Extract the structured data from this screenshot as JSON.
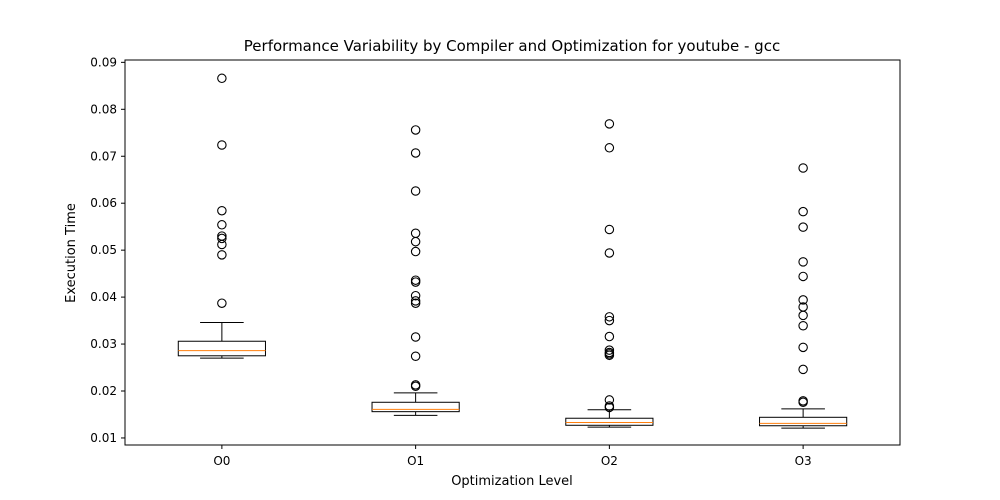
{
  "chart_data": {
    "type": "box",
    "title": "Performance Variability by Compiler and Optimization for youtube - gcc",
    "xlabel": "Optimization Level",
    "ylabel": "Execution Time",
    "ylim": [
      0.0085,
      0.0905
    ],
    "yticks": [
      0.01,
      0.02,
      0.03,
      0.04,
      0.05,
      0.06,
      0.07,
      0.08,
      0.09
    ],
    "ytick_labels": [
      "0.01",
      "0.02",
      "0.03",
      "0.04",
      "0.05",
      "0.06",
      "0.07",
      "0.08",
      "0.09"
    ],
    "categories": [
      "O0",
      "O1",
      "O2",
      "O3"
    ],
    "boxes": [
      {
        "label": "O0",
        "whisker_low": 0.027,
        "q1": 0.0275,
        "median": 0.0286,
        "q3": 0.0306,
        "whisker_high": 0.0346,
        "outliers": [
          0.0866,
          0.0724,
          0.0584,
          0.0554,
          0.053,
          0.0525,
          0.0512,
          0.049,
          0.0387
        ]
      },
      {
        "label": "O1",
        "whisker_low": 0.0148,
        "q1": 0.0156,
        "median": 0.0161,
        "q3": 0.0176,
        "whisker_high": 0.0196,
        "outliers": [
          0.0756,
          0.0707,
          0.0626,
          0.0536,
          0.0518,
          0.0497,
          0.0436,
          0.0432,
          0.0403,
          0.0392,
          0.0387,
          0.0315,
          0.0274,
          0.0213,
          0.021
        ]
      },
      {
        "label": "O2",
        "whisker_low": 0.0123,
        "q1": 0.0127,
        "median": 0.0133,
        "q3": 0.0142,
        "whisker_high": 0.016,
        "outliers": [
          0.0769,
          0.0718,
          0.0544,
          0.0494,
          0.0358,
          0.035,
          0.0316,
          0.0287,
          0.0282,
          0.0279,
          0.0276,
          0.0181,
          0.0168,
          0.0165
        ]
      },
      {
        "label": "O3",
        "whisker_low": 0.0121,
        "q1": 0.0126,
        "median": 0.0131,
        "q3": 0.0144,
        "whisker_high": 0.0162,
        "outliers": [
          0.0675,
          0.0582,
          0.0549,
          0.0475,
          0.0444,
          0.0394,
          0.0379,
          0.0361,
          0.0339,
          0.0293,
          0.0246,
          0.0179,
          0.0176
        ]
      }
    ],
    "grid": false,
    "colors": {
      "box": "#000000",
      "median": "#ff7f0e",
      "outlier_edge": "#000000",
      "axes": "#000000"
    }
  }
}
